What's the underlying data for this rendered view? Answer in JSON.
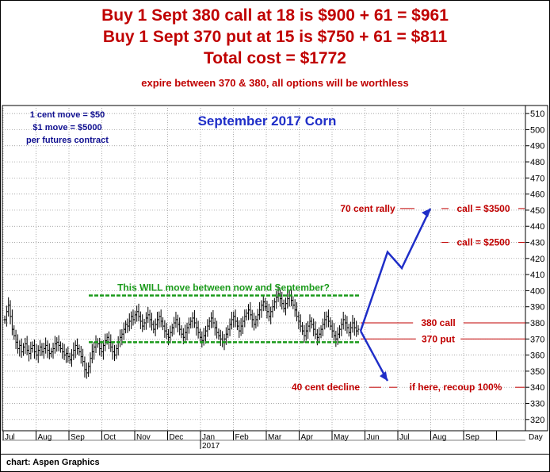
{
  "headline": {
    "line1": "Buy 1 Sept 380 call at 18 is $900 + 61 = $961",
    "line2": "Buy 1 Sept 370 put at 15 is $750 + 61 = $811",
    "line3": "Total cost = $1772",
    "sub": "expire between 370 & 380, all options will be worthless"
  },
  "notes": {
    "move1": "1 cent move = $50",
    "move2": "$1 move = $5000",
    "move3": "per futures contract"
  },
  "footer": "chart: Aspen Graphics",
  "colors": {
    "red": "#c00000",
    "blue": "#1f2ec8",
    "green": "#1a9a1a",
    "navy": "#101090"
  },
  "chart_data": {
    "type": "ohlc",
    "title": "September 2017 Corn",
    "y_ticks": [
      320,
      330,
      340,
      350,
      360,
      370,
      380,
      390,
      400,
      410,
      420,
      430,
      440,
      450,
      460,
      470,
      480,
      490,
      500,
      510
    ],
    "ylim": [
      313,
      515
    ],
    "x_ticks": [
      "Jul",
      "Aug",
      "Sep",
      "Oct",
      "Nov",
      "Dec",
      "Jan",
      "Feb",
      "Mar",
      "Apr",
      "May",
      "Jun",
      "Jul",
      "Aug",
      "Sep",
      "Day"
    ],
    "year_label": "2017",
    "series": [
      {
        "closes": [
          382,
          387,
          391,
          384,
          376,
          372,
          368,
          364,
          366,
          362,
          365,
          367,
          363,
          361,
          364,
          366,
          362,
          360,
          363,
          365,
          362,
          364,
          366,
          363,
          361,
          362,
          364,
          367,
          368,
          366,
          364,
          362,
          360,
          361,
          359,
          357,
          360,
          363,
          366,
          364,
          362,
          359,
          356,
          351,
          349,
          353,
          358,
          362,
          365,
          368,
          367,
          364,
          362,
          366,
          369,
          371,
          368,
          365,
          362,
          360,
          364,
          368,
          371,
          373,
          376,
          379,
          378,
          381,
          384,
          382,
          385,
          387,
          384,
          381,
          378,
          380,
          383,
          385,
          382,
          379,
          376,
          379,
          382,
          384,
          381,
          378,
          375,
          373,
          371,
          374,
          377,
          380,
          382,
          379,
          376,
          373,
          371,
          374,
          377,
          379,
          381,
          383,
          380,
          377,
          374,
          371,
          369,
          372,
          375,
          378,
          381,
          383,
          380,
          377,
          374,
          372,
          370,
          368,
          370,
          373,
          376,
          379,
          382,
          384,
          381,
          378,
          375,
          378,
          381,
          384,
          386,
          388,
          385,
          382,
          379,
          382,
          385,
          388,
          391,
          393,
          390,
          387,
          384,
          387,
          390,
          393,
          396,
          398,
          395,
          392,
          389,
          392,
          395,
          397,
          394,
          391,
          388,
          384,
          381,
          378,
          375,
          372,
          375,
          378,
          381,
          379,
          376,
          373,
          371,
          373,
          376,
          379,
          382,
          384,
          381,
          378,
          375,
          372,
          370,
          373,
          376,
          379,
          382,
          380,
          377,
          374,
          377,
          380,
          377,
          375,
          376
        ]
      }
    ],
    "levels": [
      {
        "label": "380 call",
        "value": 380
      },
      {
        "label": "370 put",
        "value": 370
      }
    ],
    "range_lines": [
      {
        "value": 397,
        "label": "This WILL move between now and September?"
      },
      {
        "value": 368
      }
    ],
    "projection_up": [
      [
        378,
        375
      ],
      [
        422,
        424
      ],
      [
        415,
        414
      ],
      [
        450,
        451
      ]
    ],
    "projection_down": [
      [
        378,
        375
      ],
      [
        340,
        344
      ]
    ],
    "annotations": {
      "rally": "70 cent rally",
      "call3500": "call = $3500",
      "call2500": "call = $2500",
      "decline": "40 cent decline",
      "recoup": "if here, recoup 100%"
    }
  }
}
